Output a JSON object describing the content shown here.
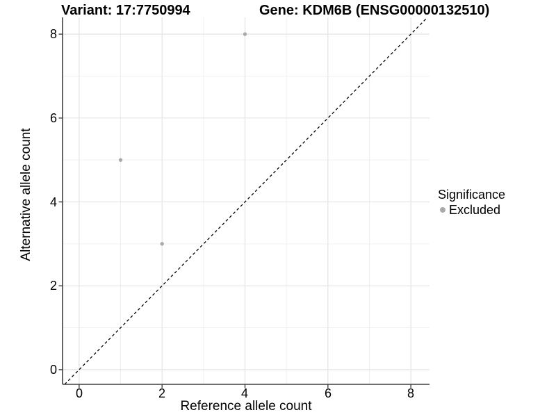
{
  "titles": {
    "variant": "Variant: 17:7750994",
    "gene": "Gene: KDM6B (ENSG00000132510)"
  },
  "axes": {
    "x": {
      "label": "Reference allele count",
      "ticks": [
        "0",
        "2",
        "4",
        "6",
        "8"
      ]
    },
    "y": {
      "label": "Alternative allele count",
      "ticks": [
        "0",
        "2",
        "4",
        "6",
        "8"
      ]
    }
  },
  "legend": {
    "title": "Significance",
    "items": [
      {
        "label": "Excluded",
        "color": "#aaaaaa"
      }
    ]
  },
  "colors": {
    "background": "#ffffff",
    "text": "#000000",
    "axis_line": "#3f3f3f",
    "tick_mark": "#3f3f3f",
    "grid_major": "#e4e4e4",
    "grid_minor": "#f0f0f0",
    "excluded_point": "#aaaaaa",
    "diagonal_line": "#000000"
  },
  "chart_data": {
    "type": "scatter",
    "title": "Variant: 17:7750994 | Gene: KDM6B (ENSG00000132510)",
    "xlabel": "Reference allele count",
    "ylabel": "Alternative allele count",
    "xlim": [
      -0.4,
      8.45
    ],
    "ylim": [
      -0.35,
      8.4
    ],
    "x_ticks": [
      0,
      2,
      4,
      6,
      8
    ],
    "y_ticks": [
      0,
      2,
      4,
      6,
      8
    ],
    "grid": "major and minor gridlines, light gray on white panel",
    "legend_position": "right-middle",
    "series": [
      {
        "name": "Excluded",
        "color": "#aaaaaa",
        "marker": "circle",
        "points": [
          [
            1,
            5
          ],
          [
            2,
            3
          ],
          [
            4,
            8
          ]
        ]
      }
    ],
    "diagonal_reference_line": {
      "slope": 1,
      "intercept": 0,
      "style": "dashed",
      "color": "#000000"
    }
  }
}
